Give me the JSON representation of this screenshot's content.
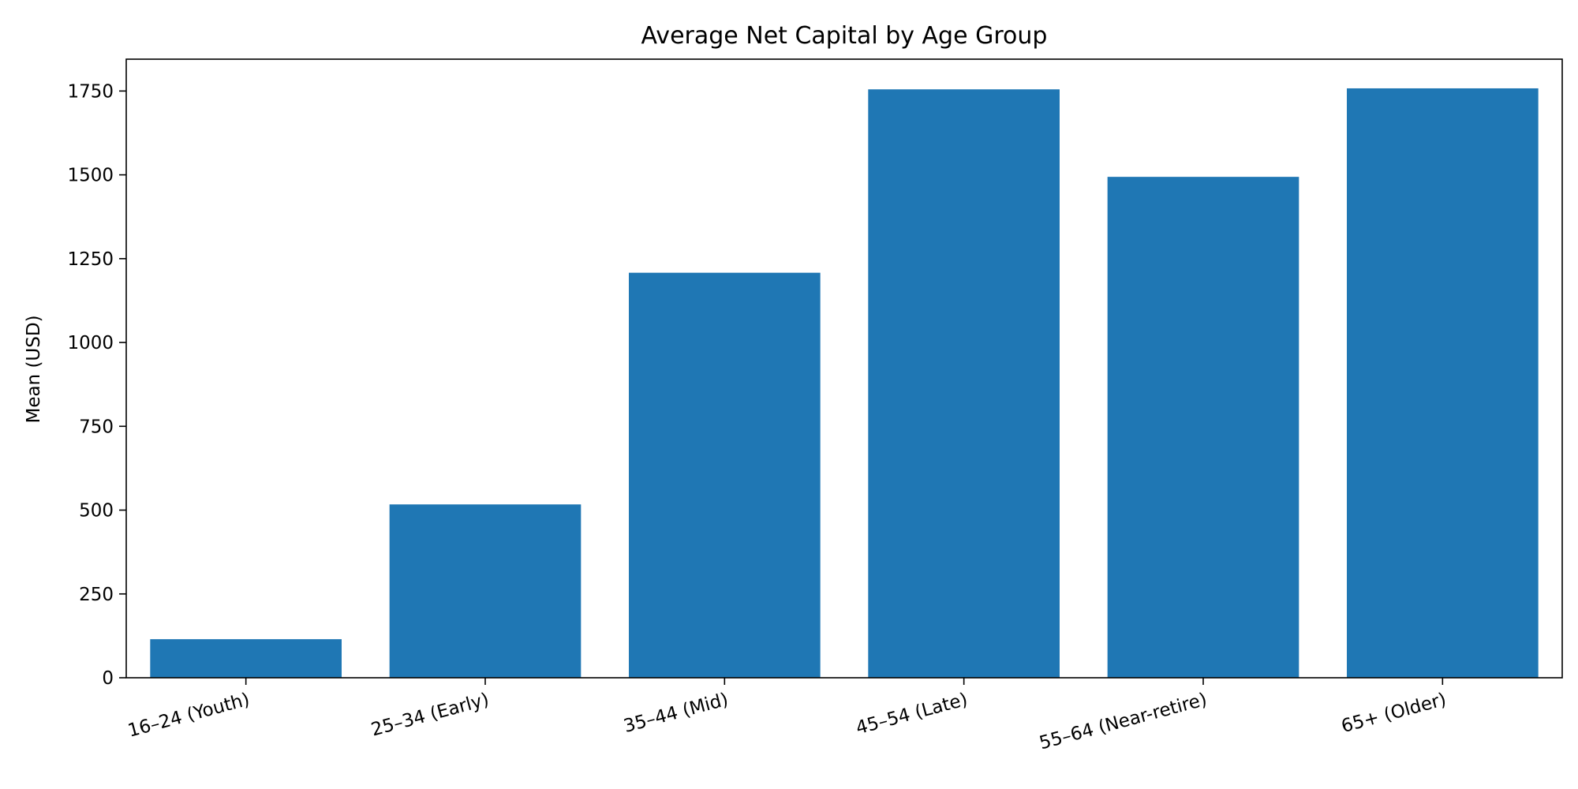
{
  "chart_data": {
    "type": "bar",
    "title": "Average Net Capital by Age Group",
    "xlabel": "",
    "ylabel": "Mean (USD)",
    "categories": [
      "16–24 (Youth)",
      "25–34 (Early)",
      "35–44 (Mid)",
      "45–54 (Late)",
      "55–64 (Near-retire)",
      "65+ (Older)"
    ],
    "values": [
      115,
      517,
      1208,
      1755,
      1494,
      1758
    ],
    "ylim": [
      0,
      1845
    ],
    "yticks": [
      0,
      250,
      500,
      750,
      1000,
      1250,
      1500,
      1750
    ],
    "grid": false,
    "legend": "none",
    "bar_color": "#1f77b4"
  }
}
